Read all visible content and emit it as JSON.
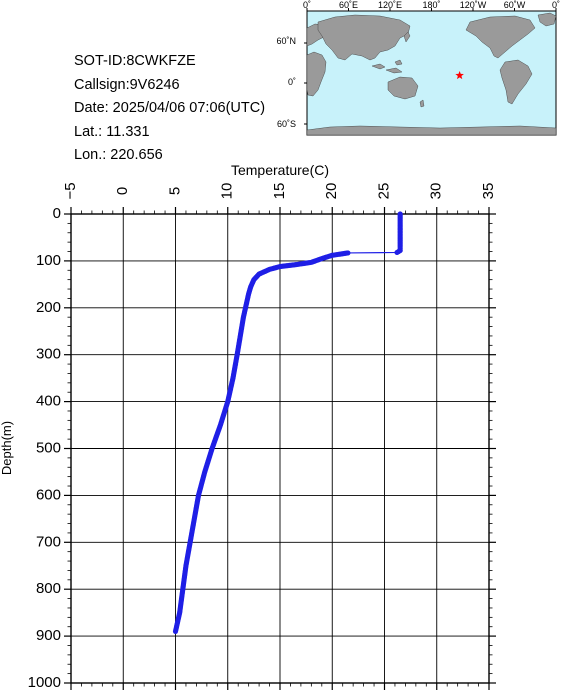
{
  "info": {
    "sot_id": "SOT-ID:8CWKFZE",
    "callsign": "Callsign:9V6246",
    "date": "Date:  2025/04/06 07:06(UTC)",
    "lat": "Lat.:  11.331",
    "lon": "Lon.:  220.656"
  },
  "map": {
    "top_labels": [
      "0˚",
      "60˚E",
      "120˚E",
      "180˚",
      "120˚W",
      "60˚W",
      "0˚"
    ],
    "left_labels": [
      "60˚N",
      "0˚",
      "60˚S"
    ],
    "ocean_color": "#c8f2fa",
    "land_color": "#9a9a9a",
    "marker_color": "#ff0000",
    "marker": {
      "lat": 11.331,
      "lon": 220.656
    }
  },
  "chart_data": {
    "type": "line",
    "xlabel": "Temperature(C)",
    "ylabel": "Depth(m)",
    "xlim": [
      -5,
      35
    ],
    "ylim": [
      0,
      1000
    ],
    "y_inverted": true,
    "x_ticks": [
      -5,
      0,
      5,
      10,
      15,
      20,
      25,
      30,
      35
    ],
    "y_ticks": [
      0,
      100,
      200,
      300,
      400,
      500,
      600,
      700,
      800,
      900,
      1000
    ],
    "grid": true,
    "series": [
      {
        "color": "#1f1fe6",
        "points": [
          [
            26.5,
            0
          ],
          [
            26.5,
            10
          ],
          [
            26.5,
            20
          ],
          [
            26.5,
            30
          ],
          [
            26.5,
            40
          ],
          [
            26.5,
            50
          ],
          [
            26.5,
            60
          ],
          [
            26.5,
            70
          ],
          [
            26.5,
            78
          ],
          [
            26.2,
            82
          ],
          [
            21.5,
            83
          ],
          [
            20.0,
            88
          ],
          [
            19.0,
            95
          ],
          [
            18.0,
            103
          ],
          [
            16.5,
            108
          ],
          [
            15.0,
            112
          ],
          [
            14.0,
            118
          ],
          [
            13.0,
            128
          ],
          [
            12.5,
            140
          ],
          [
            12.2,
            155
          ],
          [
            12.0,
            170
          ],
          [
            11.8,
            190
          ],
          [
            11.5,
            220
          ],
          [
            11.2,
            260
          ],
          [
            10.9,
            300
          ],
          [
            10.5,
            350
          ],
          [
            10.0,
            400
          ],
          [
            9.3,
            450
          ],
          [
            8.5,
            500
          ],
          [
            7.8,
            550
          ],
          [
            7.2,
            600
          ],
          [
            6.8,
            650
          ],
          [
            6.4,
            700
          ],
          [
            6.0,
            750
          ],
          [
            5.7,
            800
          ],
          [
            5.4,
            850
          ],
          [
            5.0,
            890
          ]
        ]
      }
    ]
  }
}
